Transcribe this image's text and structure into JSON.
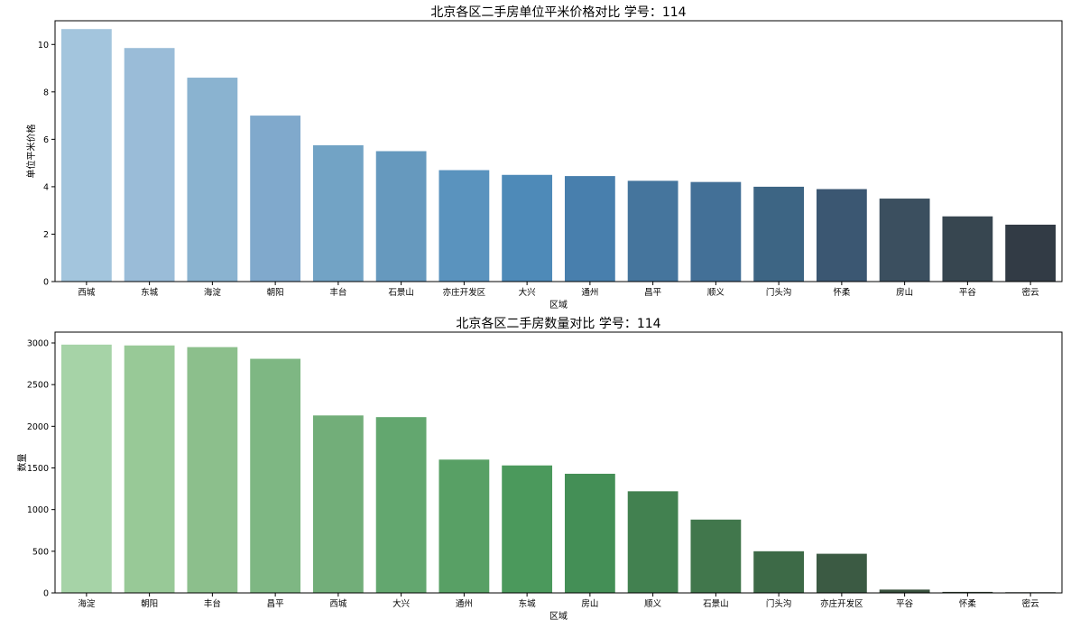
{
  "chart_data": [
    {
      "type": "bar",
      "title": "北京各区二手房单位平米价格对比  学号：114",
      "xlabel": "区域",
      "ylabel": "单位平米价格",
      "categories": [
        "西城",
        "东城",
        "海淀",
        "朝阳",
        "丰台",
        "石景山",
        "亦庄开发区",
        "大兴",
        "通州",
        "昌平",
        "顺义",
        "门头沟",
        "怀柔",
        "房山",
        "平谷",
        "密云"
      ],
      "values": [
        10.65,
        9.85,
        8.6,
        7.0,
        5.75,
        5.5,
        4.7,
        4.5,
        4.45,
        4.25,
        4.2,
        4.0,
        3.9,
        3.5,
        2.75,
        2.4
      ],
      "ylim": [
        0,
        11
      ],
      "yticks": [
        0,
        2,
        4,
        6,
        8,
        10
      ],
      "grid": false,
      "palette": "Blues_d",
      "colors": [
        "#a3c5dd",
        "#9abcd8",
        "#8ab3d0",
        "#80a9cc",
        "#72a3c5",
        "#6699be",
        "#5a93be",
        "#4e8ab8",
        "#487fad",
        "#45759d",
        "#437097",
        "#3d6584",
        "#3b5772",
        "#3b4f5f",
        "#374650",
        "#323b45"
      ]
    },
    {
      "type": "bar",
      "title": "北京各区二手房数量对比  学号：114",
      "xlabel": "区域",
      "ylabel": "数量",
      "categories": [
        "海淀",
        "朝阳",
        "丰台",
        "昌平",
        "西城",
        "大兴",
        "通州",
        "东城",
        "房山",
        "顺义",
        "石景山",
        "门头沟",
        "亦庄开发区",
        "平谷",
        "怀柔",
        "密云"
      ],
      "values": [
        2980,
        2970,
        2950,
        2810,
        2130,
        2110,
        1600,
        1530,
        1430,
        1220,
        880,
        500,
        470,
        40,
        12,
        8
      ],
      "ylim": [
        0,
        3130
      ],
      "yticks": [
        0,
        500,
        1000,
        1500,
        2000,
        2500,
        3000
      ],
      "grid": false,
      "palette": "Greens_d",
      "colors": [
        "#a6d3a7",
        "#98c997",
        "#8cbf8c",
        "#7eb783",
        "#72ae79",
        "#63a76f",
        "#58a065",
        "#4b995c",
        "#448f56",
        "#428150",
        "#41774c",
        "#3d6a47",
        "#3b5a43",
        "#37503c",
        "#324535",
        "#2d3b30"
      ]
    }
  ]
}
